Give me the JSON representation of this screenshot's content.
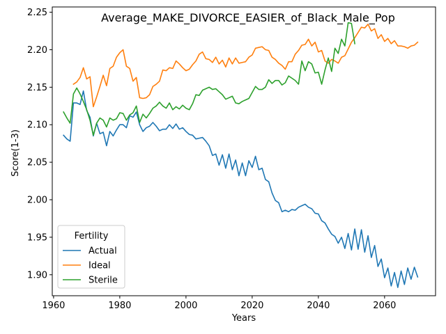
{
  "chart_data": {
    "type": "line",
    "title": "Average_MAKE_DIVORCE_EASIER_of_Black_Male_Pop",
    "xlabel": "Years",
    "ylabel": "Score(1-3)",
    "xlim": [
      1959.6,
      2075.4
    ],
    "ylim": [
      1.872,
      2.257
    ],
    "xticks": [
      1960,
      1980,
      2000,
      2020,
      2040,
      2060
    ],
    "yticks": [
      1.9,
      1.95,
      2.0,
      2.05,
      2.1,
      2.15,
      2.2,
      2.25
    ],
    "ytick_labels": [
      "1.90",
      "1.95",
      "2.00",
      "2.05",
      "2.10",
      "2.15",
      "2.20",
      "2.25"
    ],
    "grid": false,
    "legend": {
      "title": "Fertility",
      "placement": "lower-left"
    },
    "series": [
      {
        "name": "Actual",
        "color": "#1f77b4",
        "x": [
          1963,
          1964,
          1965,
          1966,
          1967,
          1968,
          1969,
          1970,
          1971,
          1972,
          1973,
          1974,
          1975,
          1976,
          1977,
          1978,
          1979,
          1980,
          1981,
          1982,
          1983,
          1984,
          1985,
          1986,
          1987,
          1988,
          1989,
          1990,
          1991,
          1992,
          1993,
          1994,
          1995,
          1996,
          1997,
          1998,
          1999,
          2000,
          2001,
          2002,
          2003,
          2004,
          2005,
          2006,
          2007,
          2008,
          2009,
          2010,
          2011,
          2012,
          2013,
          2014,
          2015,
          2016,
          2017,
          2018,
          2019,
          2020,
          2021,
          2022,
          2023,
          2024,
          2025,
          2026,
          2027,
          2028,
          2029,
          2030,
          2031,
          2032,
          2033,
          2034,
          2035,
          2036,
          2037,
          2038,
          2039,
          2040,
          2041,
          2042,
          2043,
          2044,
          2045,
          2046,
          2047,
          2048,
          2049,
          2050,
          2051,
          2052,
          2053,
          2054,
          2055,
          2056,
          2057,
          2058,
          2059,
          2060,
          2061,
          2062,
          2063,
          2064,
          2065,
          2066,
          2067,
          2068,
          2069,
          2070
        ],
        "y": [
          2.086,
          2.081,
          2.078,
          2.129,
          2.129,
          2.127,
          2.145,
          2.119,
          2.11,
          2.085,
          2.102,
          2.088,
          2.09,
          2.072,
          2.091,
          2.085,
          2.093,
          2.1,
          2.1,
          2.096,
          2.112,
          2.11,
          2.117,
          2.1,
          2.091,
          2.096,
          2.098,
          2.103,
          2.098,
          2.092,
          2.094,
          2.094,
          2.1,
          2.095,
          2.101,
          2.094,
          2.096,
          2.091,
          2.087,
          2.086,
          2.081,
          2.082,
          2.083,
          2.078,
          2.072,
          2.059,
          2.061,
          2.046,
          2.06,
          2.042,
          2.061,
          2.04,
          2.053,
          2.032,
          2.049,
          2.032,
          2.052,
          2.043,
          2.058,
          2.04,
          2.042,
          2.027,
          2.024,
          2.009,
          1.999,
          1.996,
          1.984,
          1.986,
          1.984,
          1.987,
          1.986,
          1.99,
          1.992,
          1.994,
          1.99,
          1.988,
          1.982,
          1.981,
          1.972,
          1.969,
          1.961,
          1.954,
          1.951,
          1.942,
          1.95,
          1.935,
          1.955,
          1.933,
          1.961,
          1.934,
          1.96,
          1.93,
          1.952,
          1.923,
          1.939,
          1.911,
          1.921,
          1.896,
          1.909,
          1.885,
          1.903,
          1.883,
          1.905,
          1.887,
          1.909,
          1.894,
          1.91,
          1.897
        ]
      },
      {
        "name": "Ideal",
        "color": "#ff7f0e",
        "x": [
          1966,
          1967,
          1968,
          1969,
          1970,
          1971,
          1972,
          1973,
          1974,
          1975,
          1976,
          1977,
          1978,
          1979,
          1980,
          1981,
          1982,
          1983,
          1984,
          1985,
          1986,
          1987,
          1988,
          1989,
          1990,
          1991,
          1992,
          1993,
          1994,
          1995,
          1996,
          1997,
          1998,
          1999,
          2000,
          2001,
          2002,
          2003,
          2004,
          2005,
          2006,
          2007,
          2008,
          2009,
          2010,
          2011,
          2012,
          2013,
          2014,
          2015,
          2016,
          2017,
          2018,
          2019,
          2020,
          2021,
          2022,
          2023,
          2024,
          2025,
          2026,
          2027,
          2028,
          2029,
          2030,
          2031,
          2032,
          2033,
          2034,
          2035,
          2036,
          2037,
          2038,
          2039,
          2040,
          2041,
          2042,
          2043,
          2044,
          2045,
          2046,
          2047,
          2048,
          2049,
          2050,
          2051,
          2052,
          2053,
          2054,
          2055,
          2056,
          2057,
          2058,
          2059,
          2060,
          2061,
          2062,
          2063,
          2064,
          2065,
          2066,
          2067,
          2068,
          2069,
          2070
        ],
        "y": [
          2.154,
          2.157,
          2.163,
          2.176,
          2.161,
          2.164,
          2.124,
          2.137,
          2.151,
          2.166,
          2.152,
          2.175,
          2.178,
          2.19,
          2.196,
          2.2,
          2.178,
          2.175,
          2.158,
          2.163,
          2.136,
          2.135,
          2.136,
          2.14,
          2.151,
          2.154,
          2.158,
          2.173,
          2.172,
          2.176,
          2.175,
          2.185,
          2.181,
          2.176,
          2.172,
          2.174,
          2.18,
          2.185,
          2.194,
          2.197,
          2.188,
          2.187,
          2.183,
          2.19,
          2.181,
          2.186,
          2.177,
          2.189,
          2.181,
          2.189,
          2.182,
          2.183,
          2.184,
          2.19,
          2.193,
          2.202,
          2.203,
          2.204,
          2.2,
          2.199,
          2.19,
          2.187,
          2.182,
          2.179,
          2.174,
          2.184,
          2.184,
          2.194,
          2.199,
          2.206,
          2.207,
          2.214,
          2.205,
          2.21,
          2.197,
          2.199,
          2.185,
          2.182,
          2.187,
          2.185,
          2.182,
          2.19,
          2.192,
          2.201,
          2.21,
          2.216,
          2.223,
          2.23,
          2.229,
          2.234,
          2.225,
          2.228,
          2.215,
          2.22,
          2.211,
          2.215,
          2.208,
          2.212,
          2.205,
          2.205,
          2.204,
          2.202,
          2.205,
          2.206,
          2.21
        ]
      },
      {
        "name": "Sterile",
        "color": "#2ca02c",
        "x": [
          1963,
          1964,
          1965,
          1966,
          1967,
          1968,
          1969,
          1970,
          1971,
          1972,
          1973,
          1974,
          1975,
          1976,
          1977,
          1978,
          1979,
          1980,
          1981,
          1982,
          1983,
          1984,
          1985,
          1986,
          1987,
          1988,
          1989,
          1990,
          1991,
          1992,
          1993,
          1994,
          1995,
          1996,
          1997,
          1998,
          1999,
          2000,
          2001,
          2002,
          2003,
          2004,
          2005,
          2006,
          2007,
          2008,
          2009,
          2010,
          2011,
          2012,
          2013,
          2014,
          2015,
          2016,
          2017,
          2018,
          2019,
          2020,
          2021,
          2022,
          2023,
          2024,
          2025,
          2026,
          2027,
          2028,
          2029,
          2030,
          2031,
          2032,
          2033,
          2034,
          2035,
          2036,
          2037,
          2038,
          2039,
          2040,
          2041,
          2042,
          2043,
          2044,
          2045,
          2046,
          2047,
          2048,
          2049,
          2050,
          2051
        ],
        "y": [
          2.117,
          2.109,
          2.102,
          2.141,
          2.149,
          2.141,
          2.131,
          2.12,
          2.106,
          2.086,
          2.102,
          2.109,
          2.106,
          2.097,
          2.109,
          2.106,
          2.108,
          2.116,
          2.115,
          2.106,
          2.113,
          2.116,
          2.125,
          2.103,
          2.114,
          2.109,
          2.115,
          2.122,
          2.125,
          2.13,
          2.125,
          2.122,
          2.129,
          2.12,
          2.124,
          2.121,
          2.126,
          2.122,
          2.12,
          2.128,
          2.14,
          2.139,
          2.146,
          2.148,
          2.15,
          2.147,
          2.148,
          2.144,
          2.14,
          2.134,
          2.136,
          2.138,
          2.129,
          2.128,
          2.131,
          2.133,
          2.135,
          2.143,
          2.151,
          2.147,
          2.147,
          2.15,
          2.16,
          2.155,
          2.159,
          2.159,
          2.153,
          2.156,
          2.165,
          2.162,
          2.159,
          2.154,
          2.185,
          2.172,
          2.184,
          2.181,
          2.169,
          2.17,
          2.154,
          2.173,
          2.189,
          2.171,
          2.202,
          2.195,
          2.214,
          2.205,
          2.236,
          2.235,
          2.208
        ]
      }
    ]
  }
}
